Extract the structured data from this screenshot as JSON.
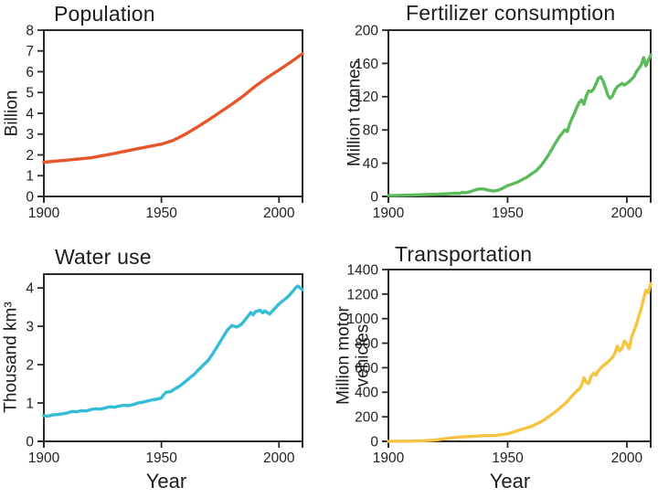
{
  "page": {
    "background": "#ffffff"
  },
  "axis": {
    "frame_color": "#2b2a29",
    "text_color": "#231f20"
  },
  "chart_data": [
    {
      "id": "population",
      "type": "line",
      "title": "Population",
      "ylabel": "Billion",
      "color": "#e7552b",
      "xlim": [
        1900,
        2010
      ],
      "ylim": [
        0,
        8
      ],
      "xticks": [
        1900,
        1950,
        2000
      ],
      "yticks": [
        0,
        1,
        2,
        3,
        4,
        5,
        6,
        7,
        8
      ],
      "grid": false,
      "x": [
        1900,
        1910,
        1920,
        1930,
        1940,
        1950,
        1955,
        1960,
        1965,
        1970,
        1975,
        1980,
        1985,
        1990,
        1995,
        2000,
        2005,
        2010
      ],
      "y": [
        1.65,
        1.75,
        1.86,
        2.07,
        2.3,
        2.52,
        2.7,
        2.98,
        3.32,
        3.68,
        4.06,
        4.44,
        4.85,
        5.31,
        5.72,
        6.09,
        6.46,
        6.87
      ]
    },
    {
      "id": "fertilizer",
      "type": "line",
      "title": "Fertilizer consumption",
      "ylabel": "Million tonnes",
      "color": "#5bba5a",
      "xlim": [
        1900,
        2010
      ],
      "ylim": [
        0,
        200
      ],
      "xticks": [
        1900,
        1950,
        2000
      ],
      "yticks": [
        0,
        40,
        80,
        120,
        160,
        200
      ],
      "grid": false,
      "x": [
        1900,
        1905,
        1910,
        1915,
        1920,
        1925,
        1928,
        1930,
        1931,
        1932,
        1934,
        1936,
        1938,
        1940,
        1942,
        1944,
        1946,
        1948,
        1950,
        1952,
        1954,
        1956,
        1958,
        1960,
        1962,
        1964,
        1966,
        1968,
        1970,
        1972,
        1974,
        1975,
        1976,
        1977,
        1978,
        1979,
        1980,
        1981,
        1982,
        1983,
        1984,
        1985,
        1986,
        1987,
        1988,
        1989,
        1990,
        1991,
        1992,
        1993,
        1994,
        1995,
        1996,
        1997,
        1998,
        1999,
        2000,
        2001,
        2002,
        2003,
        2004,
        2005,
        2006,
        2007,
        2008,
        2009,
        2010
      ],
      "y": [
        1,
        1.3,
        1.8,
        2.2,
        2.6,
        3.2,
        3.8,
        3.5,
        5,
        4.2,
        5.5,
        7.5,
        9,
        9,
        7.5,
        6.5,
        7.5,
        10,
        13,
        15,
        17,
        20,
        23,
        27,
        31,
        37,
        45,
        54,
        64,
        73,
        80,
        78,
        87,
        94,
        100,
        107,
        113,
        116,
        111,
        121,
        127,
        126,
        129,
        135,
        142,
        144,
        139,
        131,
        122,
        118,
        121,
        128,
        132,
        134,
        136,
        134,
        136,
        138,
        141,
        144,
        150,
        154,
        158,
        167,
        157,
        164,
        170
      ]
    },
    {
      "id": "water",
      "type": "line",
      "title": "Water use",
      "ylabel": "Thousand km³",
      "xlabel": "Year",
      "color": "#35bdd8",
      "xlim": [
        1900,
        2010
      ],
      "ylim": [
        0,
        4.36
      ],
      "xticks": [
        1900,
        1950,
        2000
      ],
      "yticks": [
        0,
        1,
        2,
        3,
        4
      ],
      "grid": false,
      "x": [
        1900,
        1902,
        1904,
        1906,
        1908,
        1910,
        1912,
        1914,
        1916,
        1918,
        1920,
        1922,
        1924,
        1926,
        1928,
        1930,
        1932,
        1934,
        1936,
        1938,
        1940,
        1942,
        1944,
        1946,
        1948,
        1950,
        1951,
        1952,
        1954,
        1956,
        1958,
        1960,
        1962,
        1964,
        1966,
        1968,
        1970,
        1972,
        1974,
        1976,
        1978,
        1980,
        1982,
        1984,
        1986,
        1988,
        1989,
        1990,
        1992,
        1993,
        1994,
        1996,
        1998,
        2000,
        2002,
        2004,
        2005,
        2006,
        2007,
        2008,
        2009,
        2010
      ],
      "y": [
        0.67,
        0.66,
        0.69,
        0.7,
        0.72,
        0.74,
        0.78,
        0.77,
        0.8,
        0.79,
        0.83,
        0.85,
        0.84,
        0.87,
        0.9,
        0.89,
        0.92,
        0.94,
        0.93,
        0.96,
        1.0,
        1.02,
        1.05,
        1.08,
        1.1,
        1.13,
        1.22,
        1.28,
        1.3,
        1.38,
        1.45,
        1.55,
        1.65,
        1.75,
        1.88,
        2.0,
        2.12,
        2.3,
        2.5,
        2.7,
        2.9,
        3.02,
        2.98,
        3.05,
        3.2,
        3.36,
        3.3,
        3.38,
        3.42,
        3.35,
        3.4,
        3.32,
        3.45,
        3.58,
        3.68,
        3.78,
        3.85,
        3.92,
        4.0,
        4.05,
        4.0,
        3.95
      ]
    },
    {
      "id": "transportation",
      "type": "line",
      "title": "Transportation",
      "ylabel": "Million motor\nvehicles",
      "xlabel": "Year",
      "color": "#f6c440",
      "xlim": [
        1900,
        2010
      ],
      "ylim": [
        0,
        1400
      ],
      "xticks": [
        1900,
        1950,
        2000
      ],
      "yticks": [
        0,
        200,
        400,
        600,
        800,
        1000,
        1200,
        1400
      ],
      "grid": false,
      "x": [
        1900,
        1910,
        1915,
        1920,
        1925,
        1930,
        1935,
        1940,
        1945,
        1950,
        1955,
        1960,
        1965,
        1970,
        1973,
        1975,
        1977,
        1979,
        1980,
        1981,
        1982,
        1983,
        1984,
        1985,
        1986,
        1987,
        1988,
        1990,
        1992,
        1994,
        1995,
        1996,
        1997,
        1998,
        1999,
        2000,
        2001,
        2002,
        2003,
        2004,
        2005,
        2006,
        2007,
        2008,
        2009,
        2010
      ],
      "y": [
        1,
        2,
        5,
        12,
        25,
        36,
        40,
        46,
        48,
        62,
        92,
        122,
        170,
        240,
        290,
        325,
        370,
        410,
        425,
        455,
        520,
        480,
        472,
        530,
        555,
        540,
        575,
        615,
        645,
        685,
        720,
        775,
        738,
        762,
        818,
        788,
        755,
        848,
        900,
        952,
        1020,
        1082,
        1160,
        1232,
        1212,
        1285
      ]
    }
  ]
}
